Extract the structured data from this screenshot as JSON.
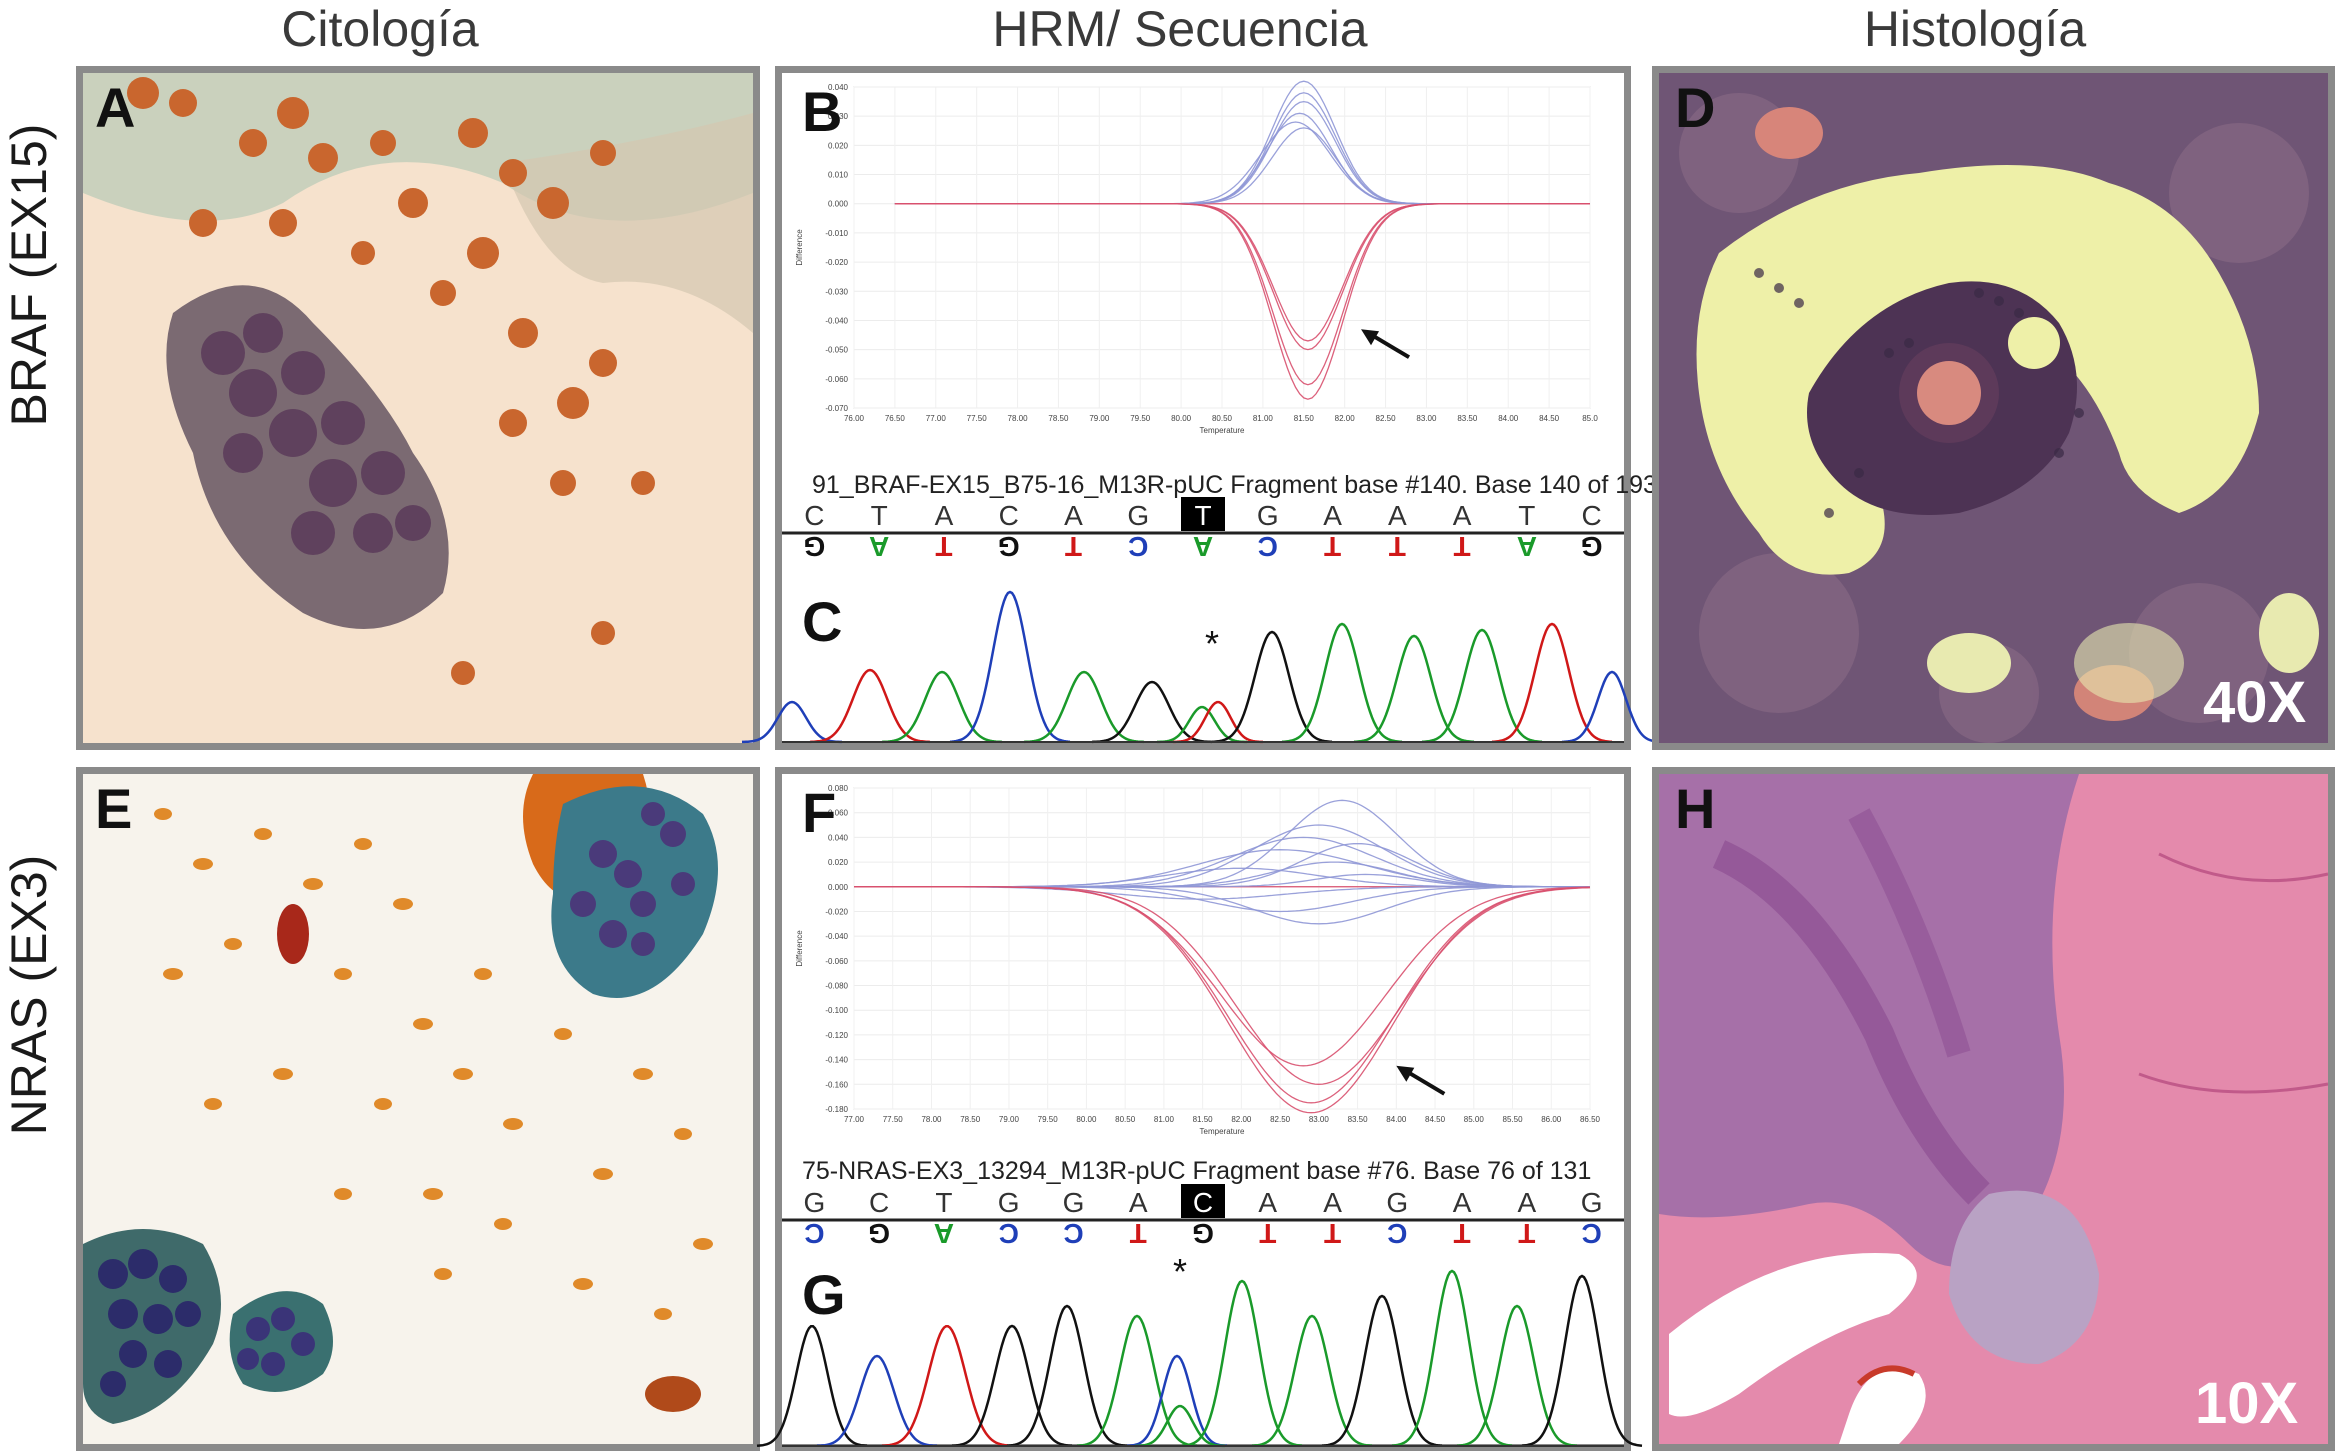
{
  "columns": [
    "Citología",
    "HRM/ Secuencia",
    "Histología"
  ],
  "rows": [
    "BRAF (EX15)",
    "NRAS (EX3)"
  ],
  "panels": {
    "A": "A",
    "B": "B",
    "C": "C",
    "D": "D",
    "E": "E",
    "F": "F",
    "G": "G",
    "H": "H"
  },
  "magnifications": {
    "D": "40X",
    "H": "10X"
  },
  "hrm_braf": {
    "xlabel": "Temperature",
    "ylabel": "Difference",
    "x_ticks": [
      "76.00",
      "76.50",
      "77.00",
      "77.50",
      "78.00",
      "78.50",
      "79.00",
      "79.50",
      "80.00",
      "80.50",
      "81.00",
      "81.50",
      "82.00",
      "82.50",
      "83.00",
      "83.50",
      "84.00",
      "84.50",
      "85.0"
    ],
    "y_ticks": [
      "0.040",
      "0.030",
      "0.020",
      "0.010",
      "0.000",
      "-0.010",
      "-0.020",
      "-0.030",
      "-0.040",
      "-0.050",
      "-0.060",
      "-0.070"
    ]
  },
  "hrm_nras": {
    "xlabel": "Temperature",
    "ylabel": "Difference",
    "x_ticks": [
      "77.00",
      "77.50",
      "78.00",
      "78.50",
      "79.00",
      "79.50",
      "80.00",
      "80.50",
      "81.00",
      "81.50",
      "82.00",
      "82.50",
      "83.00",
      "83.50",
      "84.00",
      "84.50",
      "85.00",
      "85.50",
      "86.00",
      "86.50"
    ],
    "y_ticks": [
      "0.080",
      "0.060",
      "0.040",
      "0.020",
      "0.000",
      "-0.020",
      "-0.040",
      "-0.060",
      "-0.080",
      "-0.100",
      "-0.120",
      "-0.140",
      "-0.160",
      "-0.180"
    ]
  },
  "seq_braf": {
    "header": "91_BRAF-EX15_B75-16_M13R-pUC Fragment base #140. Base 140 of 193",
    "top": [
      "C",
      "T",
      "A",
      "C",
      "A",
      "G",
      "T",
      "G",
      "A",
      "A",
      "A",
      "T",
      "C"
    ],
    "bottom": [
      "G",
      "A",
      "T",
      "G",
      "T",
      "C",
      "A",
      "C",
      "T",
      "T",
      "T",
      "A",
      "G"
    ],
    "highlight_index": 6,
    "mutation_marker": "*"
  },
  "seq_nras": {
    "header": "75-NRAS-EX3_13294_M13R-pUC Fragment base #76. Base 76 of 131",
    "top": [
      "G",
      "C",
      "T",
      "G",
      "G",
      "A",
      "C",
      "A",
      "A",
      "G",
      "A",
      "A",
      "G"
    ],
    "bottom": [
      "C",
      "G",
      "A",
      "C",
      "C",
      "T",
      "G",
      "T",
      "T",
      "C",
      "T",
      "T",
      "C"
    ],
    "highlight_index": 6,
    "mutation_marker": "*"
  },
  "colors": {
    "A": "#1a9a2a",
    "T": "#d01818",
    "G": "#111111",
    "C": "#1f3fb8",
    "pos": "#8f97d6",
    "neg": "#d8506e"
  }
}
